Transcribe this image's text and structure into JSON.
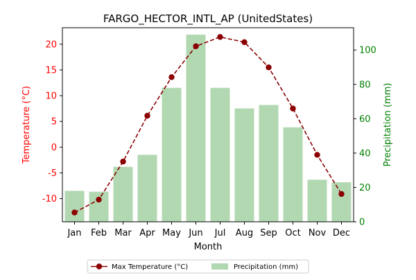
{
  "chart_data": {
    "type": "bar+line",
    "title": "FARGO_HECTOR_INTL_AP (UnitedStates)",
    "xlabel": "Month",
    "categories": [
      "Jan",
      "Feb",
      "Mar",
      "Apr",
      "May",
      "Jun",
      "Jul",
      "Aug",
      "Sep",
      "Oct",
      "Nov",
      "Dec"
    ],
    "left_axis": {
      "label": "Temperature (°C)",
      "color": "#ff0000",
      "ylim": [
        -14.5,
        23.2
      ],
      "ticks": [
        -10,
        -5,
        0,
        5,
        10,
        15,
        20
      ]
    },
    "right_axis": {
      "label": "Precipitation (mm)",
      "color": "#008000",
      "ylim": [
        0,
        113
      ],
      "ticks": [
        0,
        20,
        40,
        60,
        80,
        100
      ]
    },
    "series": [
      {
        "name": "Max Temperature (°C)",
        "type": "line",
        "axis": "left",
        "color": "#8b0000",
        "values": [
          -12.7,
          -10.2,
          -2.8,
          6.1,
          13.6,
          19.6,
          21.4,
          20.4,
          15.5,
          7.5,
          -1.5,
          -9.1
        ]
      },
      {
        "name": "Precipitation (mm)",
        "type": "bar",
        "axis": "right",
        "color": "#b2d8b2",
        "values": [
          18,
          17.5,
          32,
          39,
          78,
          109,
          78,
          66,
          68,
          55,
          24.5,
          23
        ]
      }
    ],
    "legend": {
      "placement": "bottom-center"
    },
    "grid": false
  }
}
